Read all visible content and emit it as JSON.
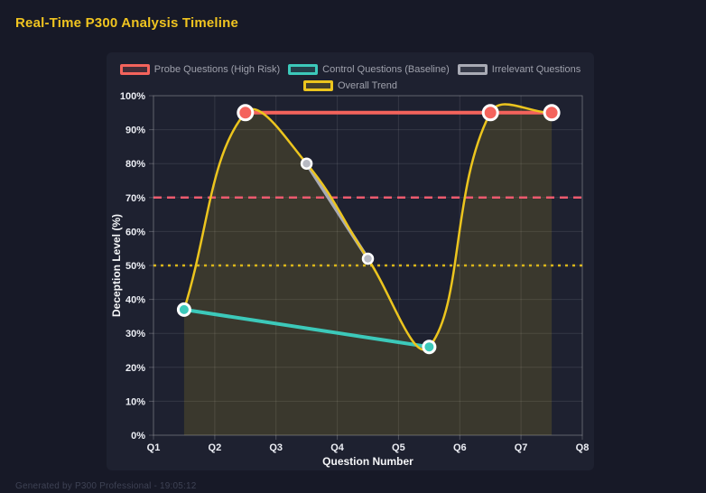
{
  "page": {
    "title": "Real-Time P300 Analysis Timeline",
    "footer": "Generated by P300 Professional - 19:05:12"
  },
  "colors": {
    "background": "#171927",
    "card": "#1e2130",
    "probe": "#f4635c",
    "control": "#3cc9ba",
    "irrelevant": "#a9abb5",
    "irrelevant_point": "#b7b9c2",
    "trend": "#ecc51e",
    "probe_threshold": "#ec5a6e",
    "trend_threshold": "#d9b519",
    "grid": "rgba(255,255,255,0.10)",
    "axis_border": "rgba(255,255,255,0.22)",
    "tick_text": "#eceef4",
    "axis_title_text": "#f5f6f8",
    "legend_text": "#9fa1ac",
    "point_border": "#ffffff",
    "trend_fill": "rgba(236,197,30,0.14)"
  },
  "legend": {
    "rows": [
      [
        {
          "label": "Probe Questions (High Risk)",
          "color_key": "probe"
        },
        {
          "label": "Control Questions (Baseline)",
          "color_key": "control"
        },
        {
          "label": "Irrelevant Questions",
          "color_key": "irrelevant"
        }
      ],
      [
        {
          "label": "Overall Trend",
          "color_key": "trend"
        }
      ]
    ]
  },
  "chart_data": {
    "type": "line",
    "title": "Real-Time P300 Analysis Timeline",
    "xlabel": "Question Number",
    "ylabel": "Deception Level (%)",
    "x_ticks": [
      "Q1",
      "Q2",
      "Q3",
      "Q4",
      "Q5",
      "Q6",
      "Q7",
      "Q8"
    ],
    "x_min": 1,
    "x_max": 8,
    "ylim": [
      0,
      100
    ],
    "y_tick_step": 10,
    "y_tick_suffix": "%",
    "grid": true,
    "legend_position": "top",
    "series": [
      {
        "name": "Control Questions (Baseline)",
        "curve": "straight",
        "color_key": "control",
        "point_color_key": "control",
        "points": [
          {
            "x": 1.5,
            "y": 37
          },
          {
            "x": 5.5,
            "y": 26
          }
        ],
        "point_radius": 6.5,
        "point_border_width": 3,
        "line_width": 4
      },
      {
        "name": "Irrelevant Questions",
        "curve": "straight",
        "color_key": "irrelevant",
        "point_color_key": "irrelevant_point",
        "points": [
          {
            "x": 3.5,
            "y": 80
          },
          {
            "x": 4.5,
            "y": 52
          }
        ],
        "point_radius": 5.5,
        "point_border_width": 2.5,
        "line_width": 4
      },
      {
        "name": "Probe Questions (High Risk)",
        "curve": "straight",
        "color_key": "probe",
        "point_color_key": "probe",
        "points": [
          {
            "x": 2.5,
            "y": 95
          },
          {
            "x": 6.5,
            "y": 95
          },
          {
            "x": 7.5,
            "y": 95
          }
        ],
        "point_radius": 8,
        "point_border_width": 3,
        "line_width": 4
      },
      {
        "name": "Overall Trend",
        "curve": "spline",
        "tension": 0.4,
        "fill_to_zero": true,
        "color_key": "trend",
        "points": [
          {
            "x": 1.5,
            "y": 37
          },
          {
            "x": 2.5,
            "y": 95
          },
          {
            "x": 3.5,
            "y": 80
          },
          {
            "x": 4.5,
            "y": 52
          },
          {
            "x": 5.5,
            "y": 26
          },
          {
            "x": 6.5,
            "y": 95
          },
          {
            "x": 7.5,
            "y": 95
          }
        ],
        "point_radius": 0,
        "line_width": 2.5
      }
    ],
    "thresholds": [
      {
        "value": 70,
        "color_key": "probe_threshold",
        "dash": "9 6",
        "width": 2.5
      },
      {
        "value": 50,
        "color_key": "trend_threshold",
        "dash": "3 5",
        "width": 2.5
      }
    ]
  }
}
